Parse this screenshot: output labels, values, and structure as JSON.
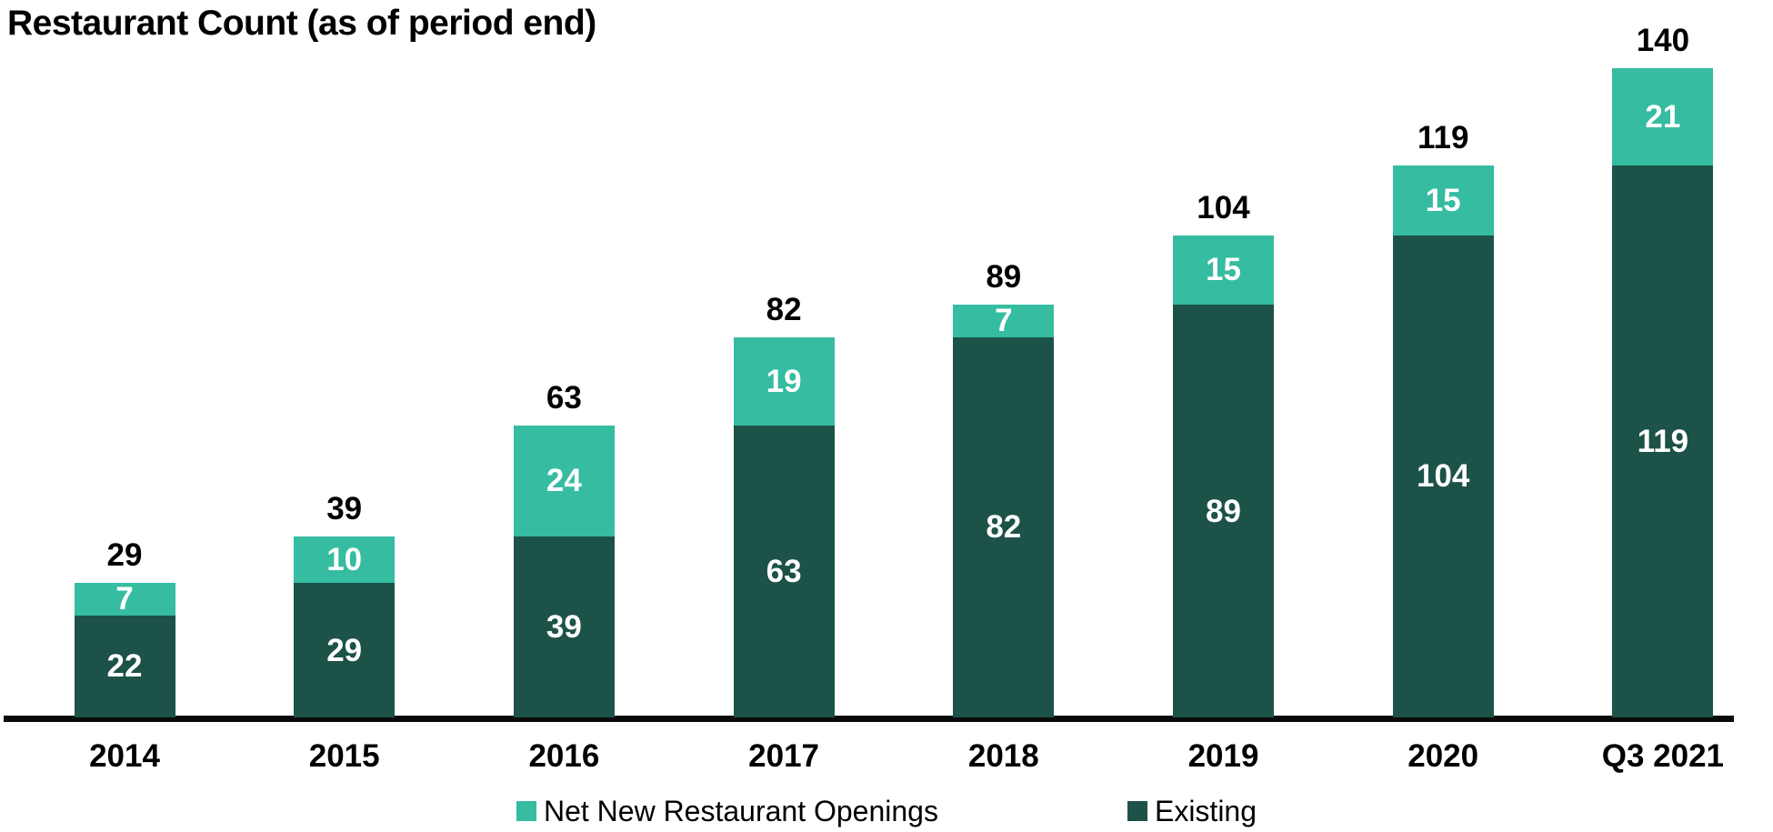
{
  "title": "Restaurant Count (as of period end)",
  "colors": {
    "net_new": "#35BCA1",
    "existing": "#1C5248",
    "axis_line": "#0A0A0A",
    "total_label": "#000000",
    "inner_label": "#FFFFFF",
    "axis_tick_label": "#000000"
  },
  "legend": {
    "items": [
      {
        "label": "Net New Restaurant Openings",
        "series_key": "net_new"
      },
      {
        "label": "Existing",
        "series_key": "existing"
      }
    ]
  },
  "chart_data": {
    "type": "bar",
    "stacked": true,
    "title": "Restaurant Count (as of period end)",
    "categories": [
      "2014",
      "2015",
      "2016",
      "2017",
      "2018",
      "2019",
      "2020",
      "Q3 2021"
    ],
    "series": [
      {
        "name": "Existing",
        "key": "existing",
        "color": "#1C5248",
        "values": [
          22,
          29,
          39,
          63,
          82,
          89,
          104,
          119
        ]
      },
      {
        "name": "Net New Restaurant Openings",
        "key": "net_new",
        "color": "#35BCA1",
        "values": [
          7,
          10,
          24,
          19,
          7,
          15,
          15,
          21
        ]
      }
    ],
    "totals": [
      29,
      39,
      63,
      82,
      89,
      104,
      119,
      140
    ],
    "xlabel": "",
    "ylabel": "",
    "ylim": [
      0,
      145
    ],
    "grid": false,
    "y_axis_visible": false,
    "legend_position": "bottom",
    "data_labels": {
      "segment_labels": "white bold, centered inside each segment",
      "total_labels": "black bold, above each bar"
    }
  }
}
